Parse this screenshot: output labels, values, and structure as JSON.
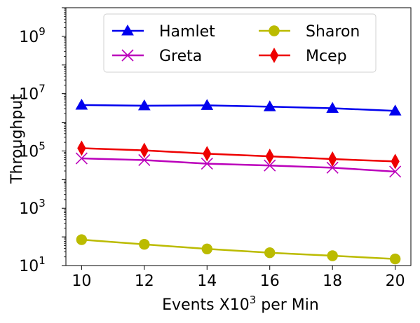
{
  "chart_data": {
    "type": "line",
    "title": "",
    "xlabel_main": "Events X10",
    "xlabel_exp": "3",
    "xlabel_suffix": " per Min",
    "ylabel": "Throughput",
    "x": [
      10,
      12,
      14,
      16,
      18,
      20
    ],
    "xlim": [
      9.5,
      20.5
    ],
    "yscale": "log",
    "ylim": [
      10,
      10000000000
    ],
    "y_ticks": [
      {
        "mantissa": "10",
        "exp": "1"
      },
      {
        "mantissa": "10",
        "exp": "3"
      },
      {
        "mantissa": "10",
        "exp": "5"
      },
      {
        "mantissa": "10",
        "exp": "7"
      },
      {
        "mantissa": "10",
        "exp": "9"
      }
    ],
    "grid": false,
    "legend_position": "top-center",
    "series": [
      {
        "name": "Hamlet",
        "color": "#0000ee",
        "marker": "triangle",
        "values": [
          4000000,
          3800000,
          3900000,
          3500000,
          3100000,
          2500000
        ]
      },
      {
        "name": "Greta",
        "color": "#bb00bb",
        "marker": "x",
        "values": [
          55000,
          48000,
          36000,
          31000,
          26000,
          19000
        ]
      },
      {
        "name": "Sharon",
        "color": "#bbbb00",
        "marker": "circle",
        "values": [
          80,
          55,
          38,
          28,
          22,
          17
        ]
      },
      {
        "name": "Mcep",
        "color": "#ee0000",
        "marker": "diamond",
        "values": [
          125000,
          105000,
          80000,
          65000,
          52000,
          43000
        ]
      }
    ]
  }
}
